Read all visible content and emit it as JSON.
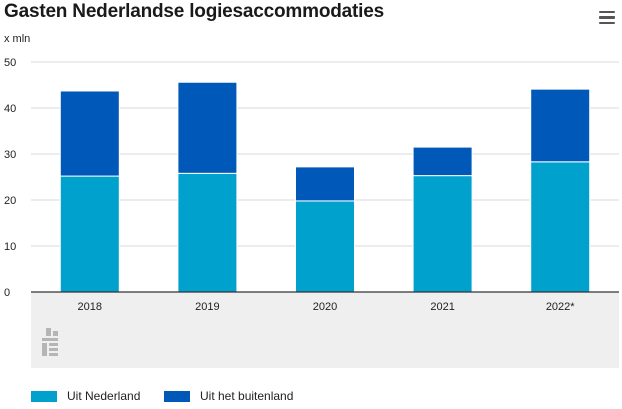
{
  "chart_data": {
    "type": "bar",
    "stacked": true,
    "title": "Gasten Nederlandse logiesaccommodaties",
    "unit_label": "x mln",
    "categories": [
      "2018",
      "2019",
      "2020",
      "2021",
      "2022*"
    ],
    "ylim": [
      0,
      50
    ],
    "yticks": [
      0,
      10,
      20,
      30,
      40,
      50
    ],
    "grid": true,
    "legend_position": "bottom-left",
    "series": [
      {
        "name": "Uit Nederland",
        "color": "#00a1cd",
        "values": [
          25.2,
          25.8,
          19.8,
          25.3,
          28.3
        ]
      },
      {
        "name": "Uit het buitenland",
        "color": "#0058b8",
        "values": [
          18.5,
          19.8,
          7.4,
          6.2,
          15.8
        ]
      }
    ]
  },
  "icons": {
    "menu": "hamburger-menu-icon",
    "logo": "cbs-logo-icon"
  },
  "colors": {
    "grid": "#d9d9d9",
    "footer_panel": "#efefef",
    "axis": "#333333"
  }
}
